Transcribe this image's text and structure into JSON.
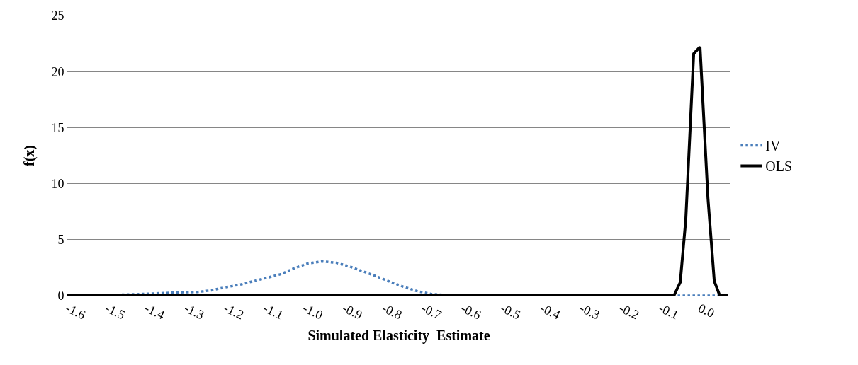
{
  "chart_data": {
    "type": "line",
    "xlabel": "Simulated Elasticity  Estimate",
    "ylabel": "f(x)",
    "xlim": [
      -1.6,
      0.077
    ],
    "xticks": [
      {
        "value": -1.6,
        "label": "-1.6"
      },
      {
        "value": -1.5,
        "label": "-1.5"
      },
      {
        "value": -1.4,
        "label": "-1.4"
      },
      {
        "value": -1.3,
        "label": "-1.3"
      },
      {
        "value": -1.2,
        "label": "-1.2"
      },
      {
        "value": -1.1,
        "label": "-1.1"
      },
      {
        "value": -1.0,
        "label": "-1.0"
      },
      {
        "value": -0.9,
        "label": "-0.9"
      },
      {
        "value": -0.8,
        "label": "-0.8"
      },
      {
        "value": -0.7,
        "label": "-0.7"
      },
      {
        "value": -0.6,
        "label": "-0.6"
      },
      {
        "value": -0.5,
        "label": "-0.5"
      },
      {
        "value": -0.4,
        "label": "-0.4"
      },
      {
        "value": -0.3,
        "label": "-0.3"
      },
      {
        "value": -0.2,
        "label": "-0.2"
      },
      {
        "value": -0.1,
        "label": "-0.1"
      },
      {
        "value": 0,
        "label": "0.0"
      }
    ],
    "ylim": [
      0,
      25
    ],
    "yticks": [
      0,
      5,
      10,
      15,
      20,
      25
    ],
    "grid": "y",
    "legend": "right",
    "series": [
      {
        "name": "IV",
        "color": "#4a7ebb",
        "line_style": "dotted",
        "x": [
          -1.6,
          -1.5,
          -1.41,
          -1.307,
          -1.271,
          -1.236,
          -1.2,
          -1.164,
          -1.13,
          -1.095,
          -1.06,
          -1.027,
          -0.991,
          -0.955,
          -0.92,
          -0.885,
          -0.851,
          -0.817,
          -0.783,
          -0.751,
          -0.715,
          -0.679,
          -0.643,
          -0.584,
          0.07
        ],
        "values": [
          0,
          0.05,
          0.15,
          0.31,
          0.33,
          0.48,
          0.75,
          0.98,
          1.29,
          1.6,
          1.92,
          2.44,
          2.88,
          3.06,
          2.94,
          2.6,
          2.15,
          1.71,
          1.23,
          0.81,
          0.4,
          0.15,
          0.05,
          0,
          0
        ]
      },
      {
        "name": "OLS",
        "color": "#000000",
        "line_style": "solid",
        "x": [
          -1.6,
          -0.066,
          -0.05,
          -0.036,
          -0.016,
          0,
          0.02,
          0.036,
          0.05,
          0.07
        ],
        "values": [
          0,
          0,
          1.2,
          6.8,
          21.6,
          22.2,
          8.7,
          1.3,
          0,
          0
        ]
      }
    ]
  }
}
